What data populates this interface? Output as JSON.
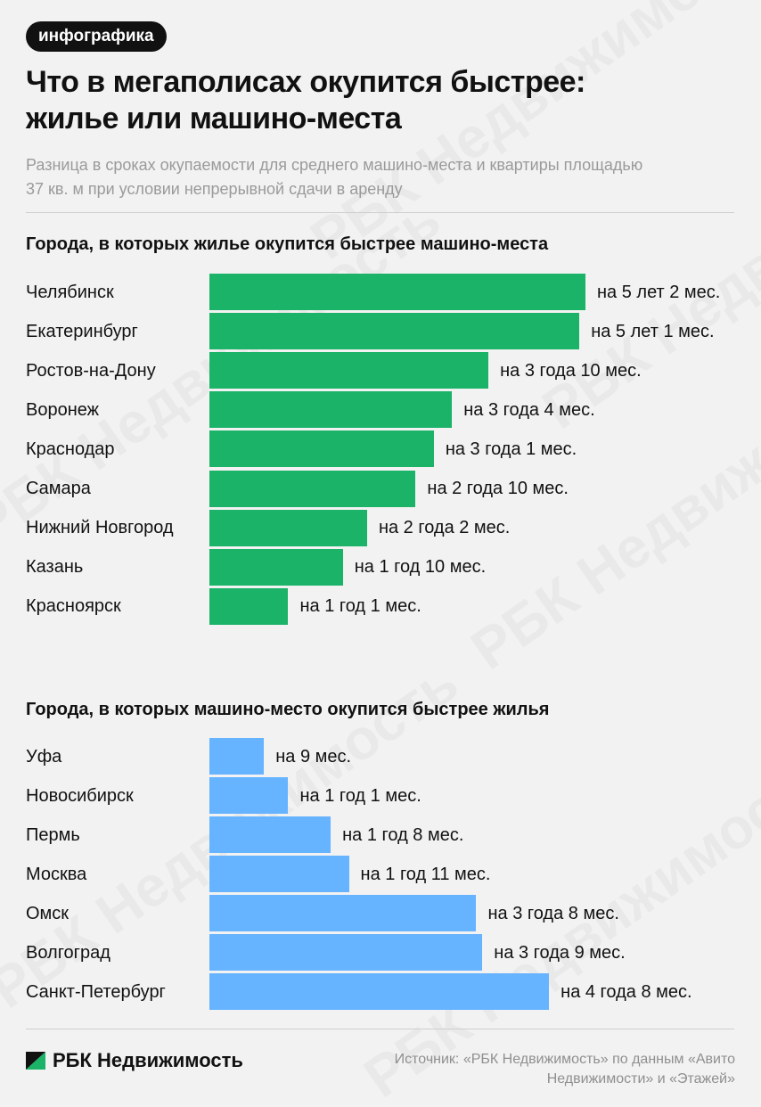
{
  "tag": "инфографика",
  "title_line1": "Что в мегаполисах окупится быстрее:",
  "title_line2": "жилье или машино-места",
  "subtitle_line1": "Разница в сроках окупаемости для среднего машино-места и квартиры площадью",
  "subtitle_line2": "37 кв. м при условии непрерывной сдачи в аренду",
  "brand": "РБК Недвижимость",
  "source_line1": "Источник: «РБК Недвижимость» по данным «Авито",
  "source_line2": "Недвижимости» и «Этажей»",
  "watermark_text": "РБК Недвижимость",
  "colors": {
    "housing": "#1ab368",
    "parking": "#66b3ff",
    "logo": "#1ab368"
  },
  "chart_data": [
    {
      "type": "bar",
      "orientation": "horizontal",
      "title": "Города, в которых жилье окупится быстрее машино-места",
      "unit": "months",
      "categories": [
        "Челябинск",
        "Екатеринбург",
        "Ростов-на-Дону",
        "Воронеж",
        "Краснодар",
        "Самара",
        "Нижний Новгород",
        "Казань",
        "Красноярск"
      ],
      "values": [
        62,
        61,
        46,
        40,
        37,
        34,
        26,
        22,
        13
      ],
      "labels": [
        "на 5 лет 2 мес.",
        "на 5 лет 1 мес.",
        "на 3 года 10 мес.",
        "на 3 года 4 мес.",
        "на 3 года 1 мес.",
        "на 2 года 10 мес.",
        "на 2 года 2 мес.",
        "на 1 год 10 мес.",
        "на 1 год 1 мес."
      ],
      "color": "#1ab368"
    },
    {
      "type": "bar",
      "orientation": "horizontal",
      "title": "Города, в которых машино-место окупится быстрее жилья",
      "unit": "months",
      "categories": [
        "Уфа",
        "Новосибирск",
        "Пермь",
        "Москва",
        "Омск",
        "Волгоград",
        "Санкт-Петербург"
      ],
      "values": [
        9,
        13,
        20,
        23,
        44,
        45,
        56
      ],
      "labels": [
        "на 9 мес.",
        "на 1 год 1 мес.",
        "на 1 год 8 мес.",
        "на 1 год 11 мес.",
        "на 3 года 8 мес.",
        "на 3 года 9 мес.",
        "на 4 года 8 мес."
      ],
      "color": "#66b3ff"
    }
  ]
}
